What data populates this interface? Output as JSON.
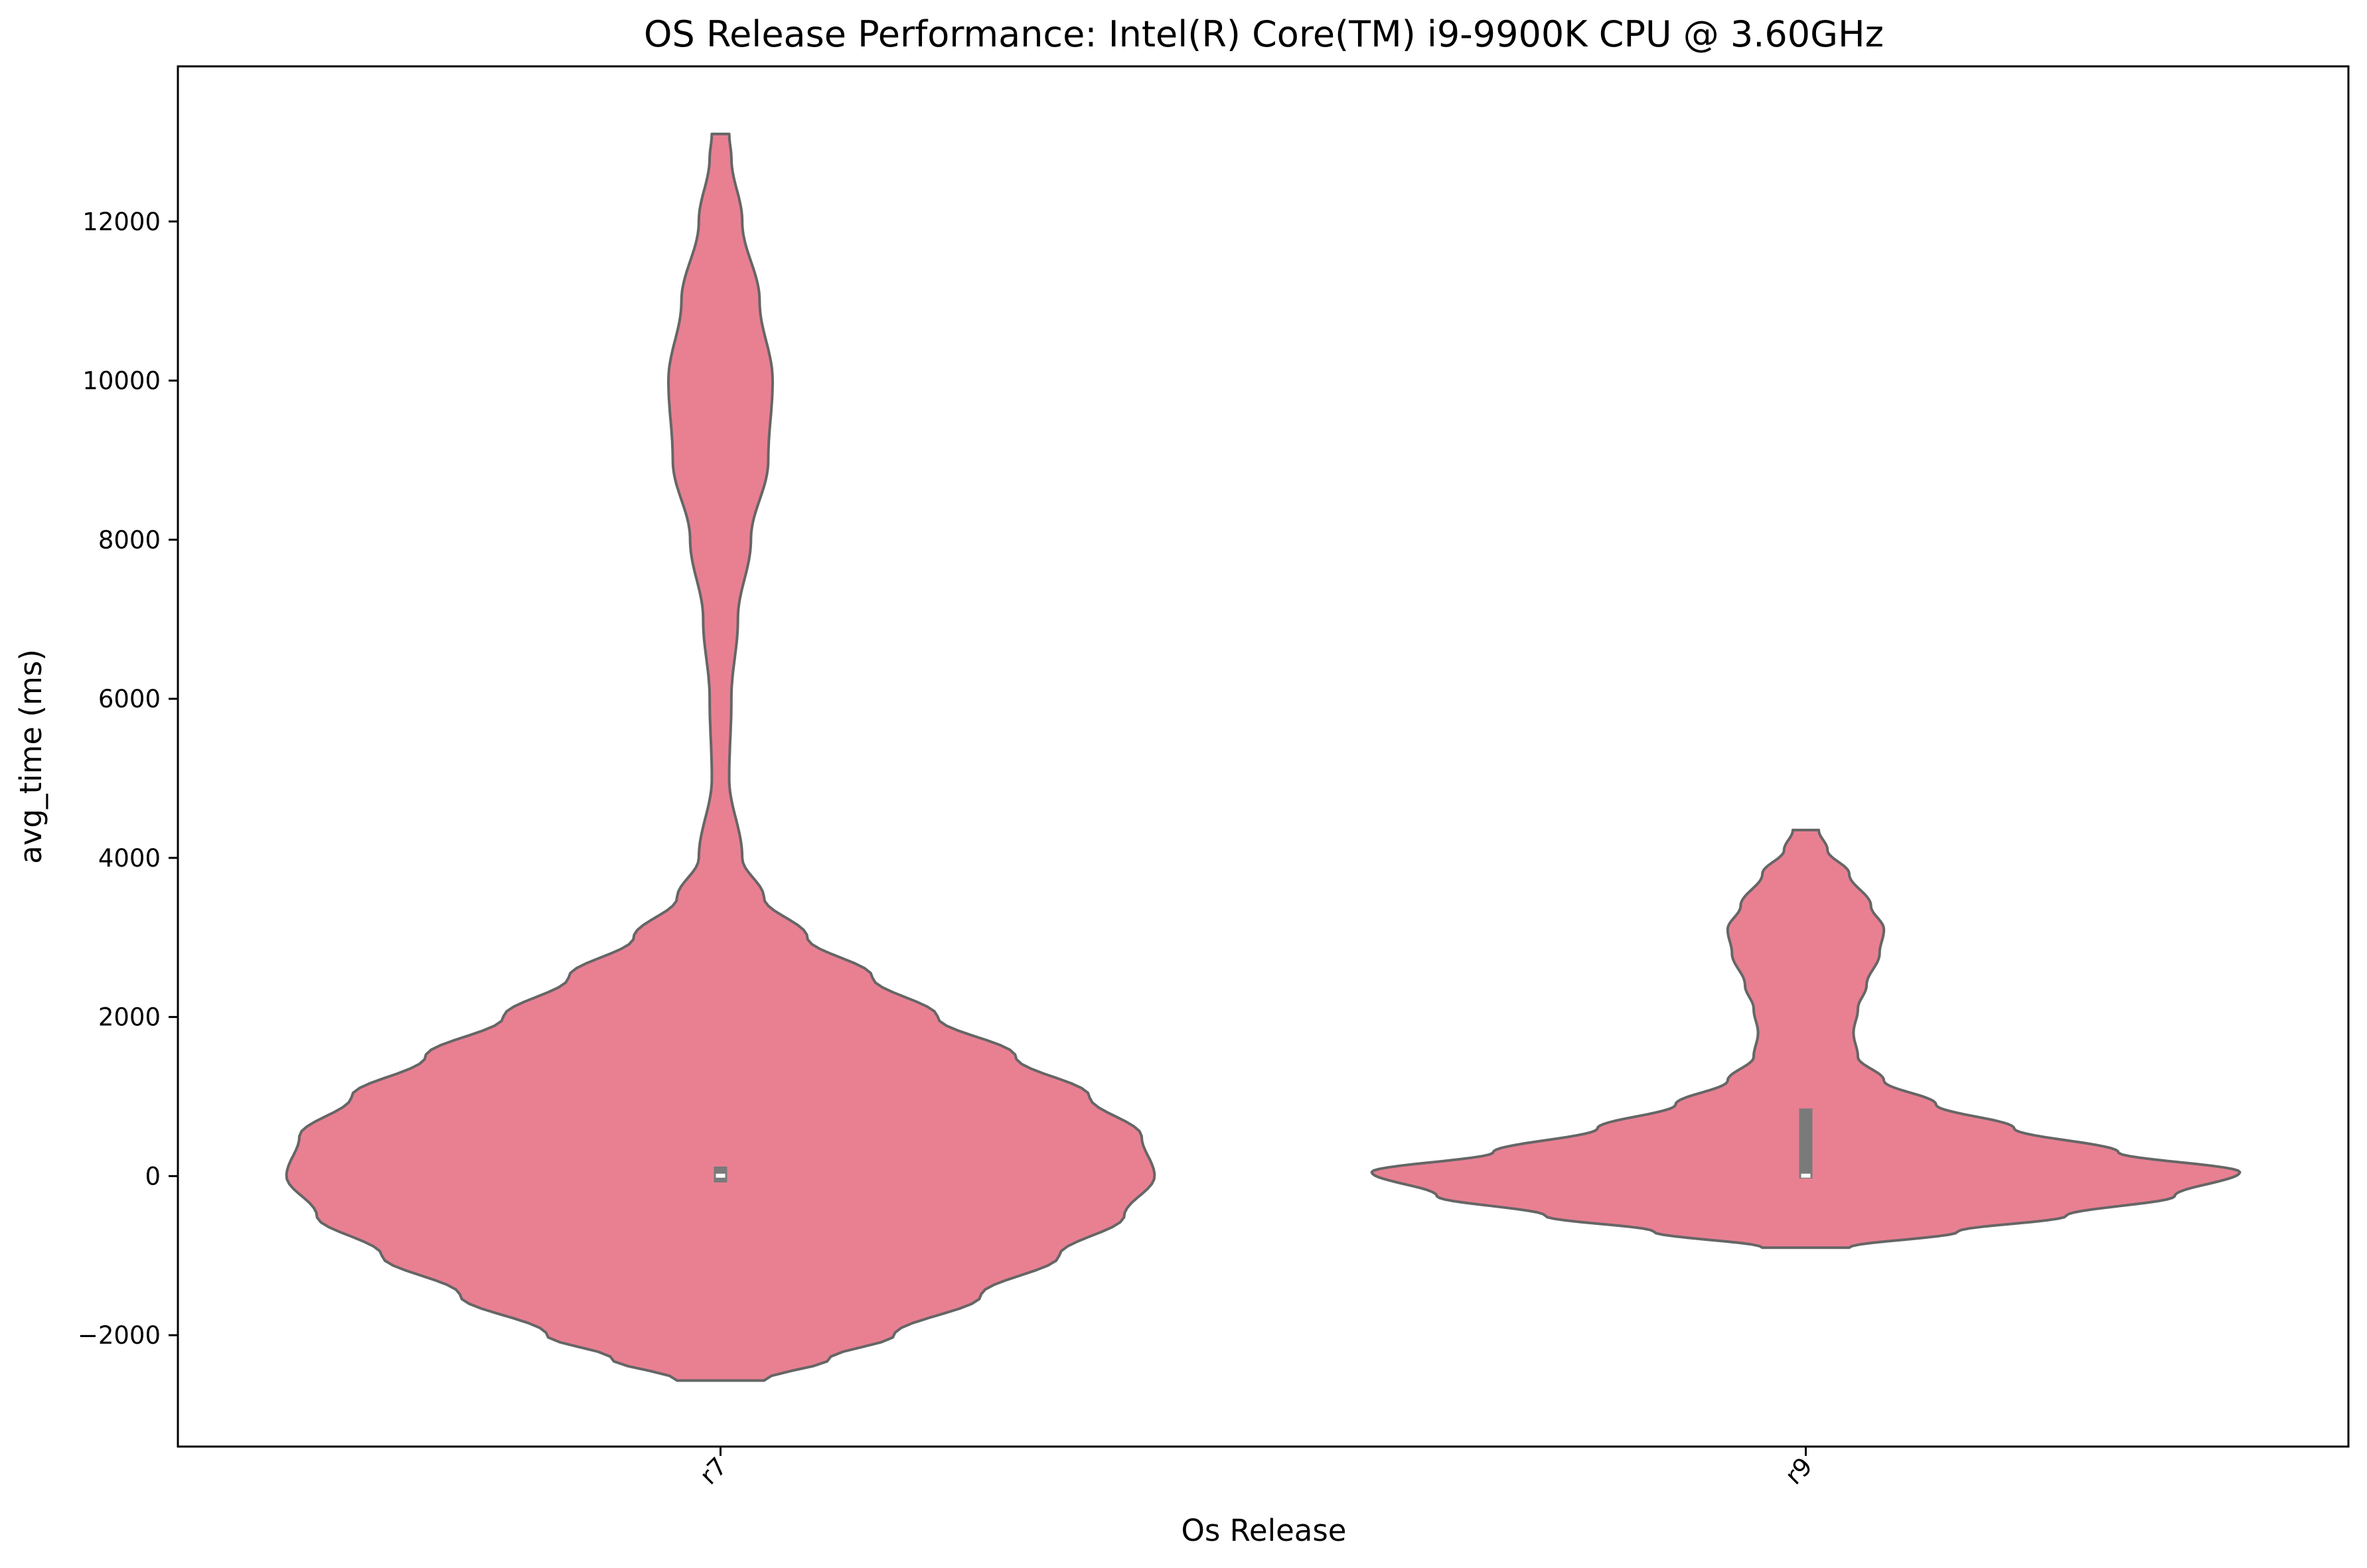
{
  "chart_data": {
    "type": "violin",
    "title": "OS Release Performance: Intel(R) Core(TM) i9-9900K CPU @ 3.60GHz",
    "xlabel": "Os Release",
    "ylabel": "avg_time (ms)",
    "categories": [
      "r7",
      "r9"
    ],
    "ylim": [
      -3400,
      13950
    ],
    "yticks": [
      -2000,
      0,
      2000,
      4000,
      6000,
      8000,
      10000,
      12000
    ],
    "ytick_labels": [
      "−2000",
      "0",
      "2000",
      "4000",
      "6000",
      "8000",
      "10000",
      "12000"
    ],
    "grid": false,
    "fill_color": "#e88092",
    "edge_color": "#666666",
    "inner_color": "#7a7a7a",
    "series": [
      {
        "category": "r7",
        "range": [
          -2570,
          13100
        ],
        "quartiles": [
          -80,
          5,
          120
        ],
        "median": 5,
        "density_profile": [
          [
            -2570,
            0.1
          ],
          [
            -2300,
            0.25
          ],
          [
            -2000,
            0.4
          ],
          [
            -1500,
            0.6
          ],
          [
            -1000,
            0.78
          ],
          [
            -500,
            0.93
          ],
          [
            0,
            1.0
          ],
          [
            500,
            0.97
          ],
          [
            1000,
            0.85
          ],
          [
            1500,
            0.68
          ],
          [
            2000,
            0.5
          ],
          [
            2500,
            0.35
          ],
          [
            3000,
            0.2
          ],
          [
            3500,
            0.1
          ],
          [
            4000,
            0.05
          ],
          [
            5000,
            0.02
          ],
          [
            6000,
            0.025
          ],
          [
            7000,
            0.04
          ],
          [
            8000,
            0.07
          ],
          [
            9000,
            0.11
          ],
          [
            10000,
            0.12
          ],
          [
            11000,
            0.09
          ],
          [
            12000,
            0.05
          ],
          [
            12800,
            0.025
          ],
          [
            13100,
            0.02
          ]
        ]
      },
      {
        "category": "r9",
        "range": [
          -900,
          4350
        ],
        "quartiles": [
          -30,
          5,
          850
        ],
        "median": 5,
        "density_profile": [
          [
            -900,
            0.1
          ],
          [
            -700,
            0.35
          ],
          [
            -500,
            0.6
          ],
          [
            -250,
            0.85
          ],
          [
            50,
            1.0
          ],
          [
            300,
            0.72
          ],
          [
            600,
            0.48
          ],
          [
            900,
            0.3
          ],
          [
            1200,
            0.18
          ],
          [
            1500,
            0.12
          ],
          [
            1800,
            0.11
          ],
          [
            2100,
            0.12
          ],
          [
            2400,
            0.14
          ],
          [
            2800,
            0.17
          ],
          [
            3100,
            0.18
          ],
          [
            3400,
            0.15
          ],
          [
            3800,
            0.1
          ],
          [
            4100,
            0.05
          ],
          [
            4350,
            0.03
          ]
        ]
      }
    ]
  }
}
